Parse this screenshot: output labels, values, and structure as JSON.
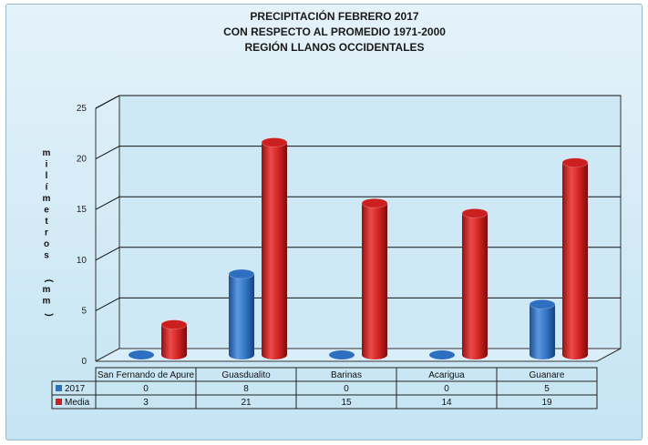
{
  "chart_data": {
    "type": "bar",
    "title": [
      "PRECIPITACIÓN FEBRERO 2017",
      "CON RESPECTO AL PROMEDIO 1971-2000",
      "REGIÓN LLANOS OCCIDENTALES"
    ],
    "ylabel": "milímetros (mm)",
    "ylim": [
      0,
      25
    ],
    "yticks": [
      "0",
      "5",
      "10",
      "15",
      "20",
      "25"
    ],
    "grid": true,
    "legend": "data-table",
    "categories": [
      "San Fernando de Apure",
      "Guasdualito",
      "Barinas",
      "Acarigua",
      "Guanare"
    ],
    "series": [
      {
        "name": "2017",
        "values": [
          0,
          8,
          0,
          0,
          5
        ],
        "table_values": [
          "0",
          "8",
          "0",
          "0",
          "5"
        ],
        "color": "#2e6fc0"
      },
      {
        "name": "Media",
        "values": [
          3,
          21,
          15,
          14,
          19
        ],
        "table_values": [
          "3",
          "21",
          "15",
          "14",
          "19"
        ],
        "color": "#cc1f1f"
      }
    ]
  }
}
